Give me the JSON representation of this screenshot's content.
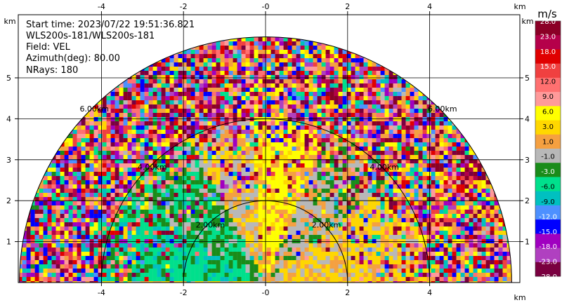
{
  "chart_data": {
    "type": "heatmap",
    "plot": "PPI",
    "info": {
      "start_time": "Start time: 2023/07/22 19:51:36.821",
      "instrument": "WLS200s-181/WLS200s-181",
      "field": "Field: VEL",
      "azimuth": "Azimuth(deg): 80.00",
      "nrays": "NRays: 180"
    },
    "x_axis": {
      "unit": "km",
      "range": [
        -6,
        6
      ],
      "ticks": [
        -4,
        -2,
        0,
        2,
        4
      ],
      "tick_labels": [
        "-4",
        "-2",
        "-0",
        "2",
        "4"
      ]
    },
    "y_axis": {
      "unit": "km",
      "range": [
        0,
        6
      ],
      "ticks": [
        1,
        2,
        3,
        4,
        5
      ],
      "tick_labels": [
        "1",
        "2",
        "3",
        "4",
        "5"
      ]
    },
    "range_rings_km": [
      2,
      4,
      6
    ],
    "range_ring_labels": [
      "2.00km",
      "4.00km",
      "6.00km"
    ],
    "max_range_km": 6,
    "grid": true,
    "colorbar": {
      "unit": "m/s",
      "labels": [
        "28.0",
        "23.0",
        "18.0",
        "15.0",
        "12.0",
        "9.0",
        "6.0",
        "3.0",
        "1.0",
        "-1.0",
        "-3.0",
        "-6.0",
        "-9.0",
        "-12.0",
        "-15.0",
        "-18.0",
        "-23.0",
        "-28.0"
      ],
      "colors": [
        "#8b0026",
        "#b5004a",
        "#e00000",
        "#f04040",
        "#ff7070",
        "#ff9a9a",
        "#ffff00",
        "#ffd700",
        "#f5a040",
        "#b8b8b8",
        "#1a8c1a",
        "#00e08c",
        "#00c0c0",
        "#4d90ff",
        "#0000ff",
        "#a000c0",
        "#b040c0",
        "#7a0040"
      ]
    }
  }
}
